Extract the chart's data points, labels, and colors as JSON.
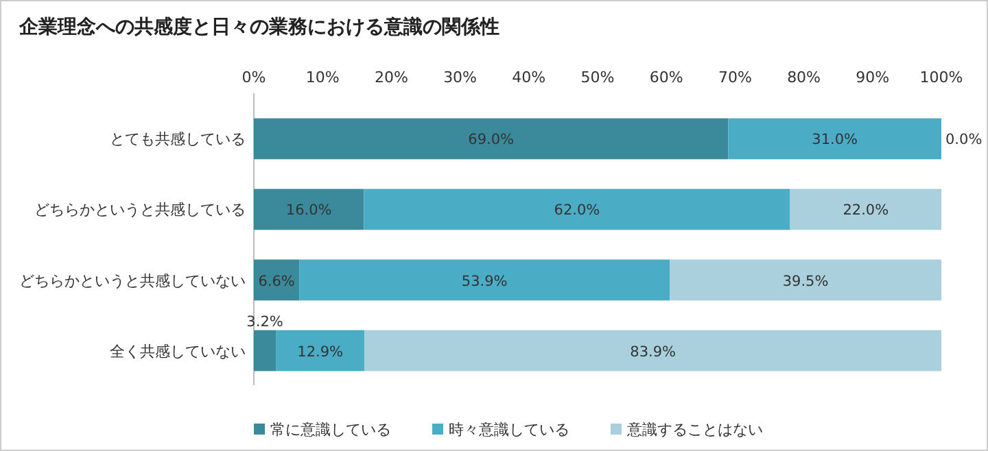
{
  "chart_data": {
    "type": "bar",
    "orientation": "horizontal",
    "stacked": true,
    "title": "企業理念への共感度と日々の業務における意識の関係性",
    "categories": [
      "とても共感している",
      "どちらかというと共感している",
      "どちらかというと共感していない",
      "全く共感していない"
    ],
    "xlim": [
      0,
      100
    ],
    "xticks": [
      {
        "value": 0,
        "label": "0%"
      },
      {
        "value": 10,
        "label": "10%"
      },
      {
        "value": 20,
        "label": "20%"
      },
      {
        "value": 30,
        "label": "30%"
      },
      {
        "value": 40,
        "label": "40%"
      },
      {
        "value": 50,
        "label": "50%"
      },
      {
        "value": 60,
        "label": "60%"
      },
      {
        "value": 70,
        "label": "70%"
      },
      {
        "value": 80,
        "label": "80%"
      },
      {
        "value": 90,
        "label": "90%"
      },
      {
        "value": 100,
        "label": "100%"
      }
    ],
    "series": [
      {
        "name": "常に意識している",
        "color": "#3a8a9c",
        "values": [
          69.0,
          16.0,
          6.6,
          3.2
        ],
        "value_labels": [
          "69.0%",
          "16.0%",
          "6.6%",
          "3.2%"
        ]
      },
      {
        "name": "時々意識している",
        "color": "#4bacc6",
        "values": [
          31.0,
          62.0,
          53.9,
          12.9
        ],
        "value_labels": [
          "31.0%",
          "62.0%",
          "53.9%",
          "12.9%"
        ]
      },
      {
        "name": "意識することはない",
        "color": "#a9d0dc",
        "values": [
          0.0,
          22.0,
          39.5,
          83.9
        ],
        "value_labels": [
          "0.0%",
          "22.0%",
          "39.5%",
          "83.9%"
        ]
      }
    ],
    "legend": "bottom",
    "grid": false
  }
}
